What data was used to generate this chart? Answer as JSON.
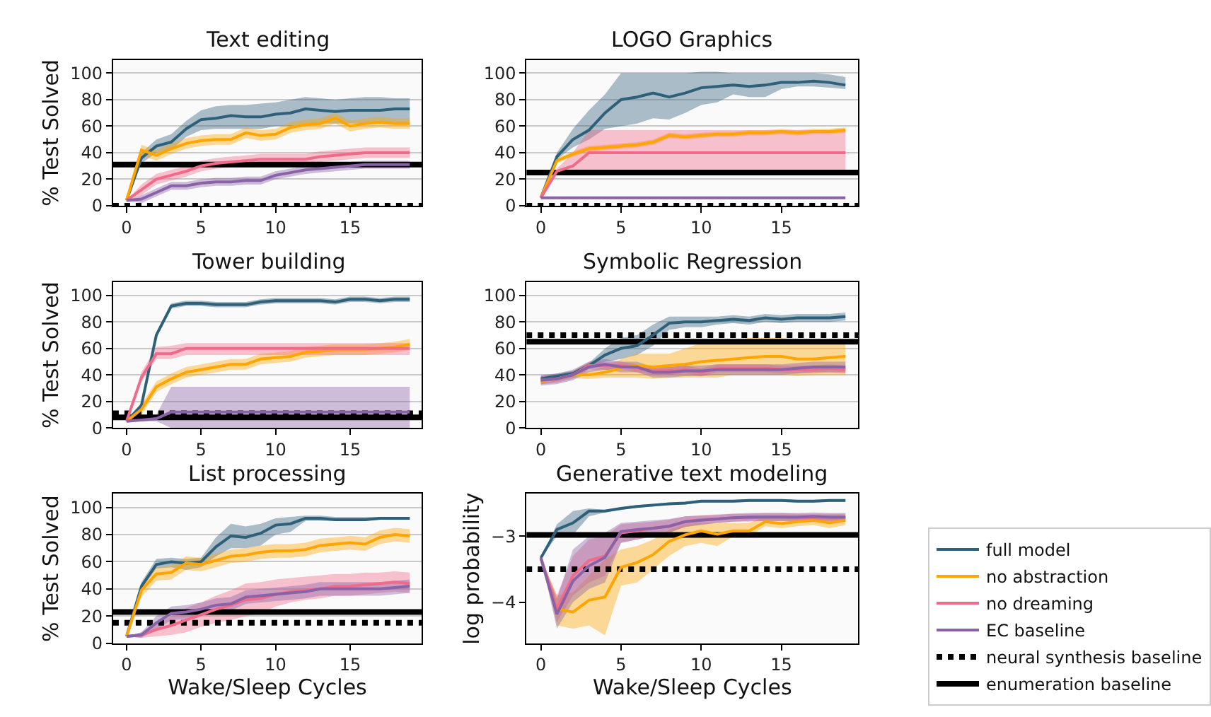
{
  "chart_data": [
    {
      "type": "line",
      "title": "Text editing",
      "ylabel": "% Test Solved",
      "x": [
        0,
        1,
        2,
        3,
        4,
        5,
        6,
        7,
        8,
        9,
        10,
        11,
        12,
        13,
        14,
        15,
        16,
        17,
        18,
        19
      ],
      "xlim": [
        -0.9,
        19.8
      ],
      "xticks": [
        0,
        5,
        10,
        15
      ],
      "ylim": [
        0,
        110
      ],
      "yticks": [
        0,
        20,
        40,
        60,
        80,
        100
      ],
      "grid": "y",
      "series": [
        {
          "color": "#2f607a",
          "values": [
            4,
            36,
            45,
            48,
            58,
            65,
            66,
            68,
            67,
            67,
            69,
            70,
            73,
            72,
            71,
            72,
            72,
            72,
            73,
            73
          ],
          "lower": [
            4,
            32,
            40,
            42,
            52,
            57,
            58,
            58,
            58,
            58,
            60,
            60,
            62,
            62,
            62,
            62,
            62,
            62,
            63,
            63
          ],
          "upper": [
            4,
            40,
            50,
            54,
            64,
            72,
            75,
            76,
            76,
            77,
            78,
            80,
            82,
            81,
            80,
            81,
            82,
            82,
            81,
            81
          ]
        },
        {
          "color": "#ffa500",
          "values": [
            4,
            42,
            38,
            43,
            47,
            49,
            50,
            50,
            55,
            53,
            54,
            59,
            61,
            62,
            66,
            60,
            62,
            63,
            62,
            62
          ],
          "lower": [
            4,
            38,
            34,
            39,
            43,
            45,
            46,
            46,
            51,
            49,
            50,
            55,
            57,
            58,
            62,
            56,
            58,
            59,
            58,
            58
          ],
          "upper": [
            4,
            46,
            42,
            47,
            51,
            53,
            54,
            54,
            59,
            57,
            58,
            63,
            65,
            66,
            70,
            64,
            66,
            67,
            66,
            66
          ]
        },
        {
          "color": "#f06a8a",
          "values": [
            4,
            12,
            20,
            23,
            26,
            30,
            32,
            33,
            34,
            35,
            35,
            35,
            35,
            37,
            38,
            39,
            40,
            40,
            40,
            40
          ],
          "lower": [
            4,
            8,
            16,
            19,
            22,
            26,
            28,
            29,
            30,
            31,
            31,
            31,
            31,
            33,
            34,
            35,
            36,
            36,
            36,
            36
          ],
          "upper": [
            4,
            16,
            24,
            27,
            30,
            34,
            36,
            37,
            38,
            39,
            39,
            39,
            39,
            41,
            42,
            43,
            44,
            44,
            44,
            44
          ]
        },
        {
          "color": "#8a62a8",
          "values": [
            4,
            5,
            10,
            15,
            15,
            17,
            18,
            18,
            19,
            19,
            23,
            25,
            27,
            28,
            29,
            30,
            31,
            31,
            31,
            31
          ],
          "lower": [
            4,
            2,
            7,
            12,
            12,
            14,
            15,
            15,
            16,
            16,
            20,
            22,
            24,
            25,
            26,
            27,
            28,
            28,
            28,
            28
          ],
          "upper": [
            4,
            8,
            13,
            18,
            18,
            20,
            21,
            21,
            22,
            22,
            26,
            28,
            30,
            31,
            32,
            33,
            34,
            34,
            34,
            34
          ]
        }
      ],
      "ref_lines": [
        {
          "axis": "y",
          "value": 0,
          "line_style": "dotted",
          "color": "#000000"
        },
        {
          "axis": "y",
          "value": 31,
          "line_style": "solid",
          "color": "#000000"
        }
      ]
    },
    {
      "type": "line",
      "title": "LOGO Graphics",
      "x": [
        0,
        1,
        2,
        3,
        4,
        5,
        6,
        7,
        8,
        9,
        10,
        11,
        12,
        13,
        14,
        15,
        16,
        17,
        18,
        19
      ],
      "xlim": [
        -0.9,
        19.8
      ],
      "xticks": [
        0,
        5,
        10,
        15
      ],
      "ylim": [
        0,
        110
      ],
      "yticks": [
        0,
        20,
        40,
        60,
        80,
        100
      ],
      "grid": "y",
      "series": [
        {
          "color": "#2f607a",
          "values": [
            6,
            37,
            50,
            57,
            70,
            80,
            82,
            85,
            82,
            85,
            89,
            90,
            91,
            90,
            91,
            93,
            93,
            94,
            93,
            91
          ],
          "lower": [
            6,
            35,
            44,
            50,
            58,
            60,
            62,
            66,
            65,
            70,
            76,
            78,
            84,
            82,
            82,
            88,
            90,
            90,
            89,
            88
          ],
          "upper": [
            6,
            40,
            58,
            72,
            84,
            100,
            100,
            100,
            100,
            100,
            101,
            101,
            100,
            100,
            100,
            100,
            100,
            100,
            99,
            97
          ]
        },
        {
          "color": "#ffa500",
          "values": [
            6,
            34,
            39,
            43,
            44,
            45,
            46,
            48,
            53,
            52,
            53,
            54,
            54,
            55,
            55,
            56,
            55,
            56,
            56,
            57
          ],
          "lower": [
            6,
            32,
            37,
            41,
            42,
            43,
            44,
            46,
            51,
            50,
            51,
            52,
            52,
            53,
            53,
            54,
            53,
            54,
            54,
            55
          ],
          "upper": [
            6,
            36,
            41,
            45,
            46,
            47,
            48,
            50,
            55,
            54,
            55,
            56,
            56,
            57,
            57,
            58,
            57,
            58,
            58,
            59
          ]
        },
        {
          "color": "#f06a8a",
          "values": [
            6,
            26,
            30,
            40,
            40,
            40,
            40,
            40,
            40,
            40,
            40,
            40,
            40,
            40,
            40,
            40,
            40,
            40,
            40,
            40
          ],
          "lower": [
            6,
            24,
            25,
            24,
            24,
            24,
            24,
            24,
            24,
            24,
            24,
            24,
            24,
            24,
            24,
            24,
            24,
            24,
            24,
            24
          ],
          "upper": [
            6,
            28,
            40,
            57,
            57,
            57,
            57,
            57,
            57,
            57,
            57,
            57,
            57,
            57,
            57,
            57,
            57,
            57,
            57,
            57
          ]
        },
        {
          "color": "#8a62a8",
          "values": [
            6,
            6,
            6,
            6,
            6,
            6,
            6,
            6,
            6,
            6,
            6,
            6,
            6,
            6,
            6,
            6,
            6,
            6,
            6,
            6
          ]
        }
      ],
      "ref_lines": [
        {
          "axis": "y",
          "value": 0,
          "line_style": "dotted",
          "color": "#000000"
        },
        {
          "axis": "y",
          "value": 25,
          "line_style": "solid",
          "color": "#000000"
        }
      ]
    },
    {
      "type": "line",
      "title": "Tower building",
      "ylabel": "% Test Solved",
      "x": [
        0,
        1,
        2,
        3,
        4,
        5,
        6,
        7,
        8,
        9,
        10,
        11,
        12,
        13,
        14,
        15,
        16,
        17,
        18,
        19
      ],
      "xlim": [
        -0.9,
        19.8
      ],
      "xticks": [
        0,
        5,
        10,
        15
      ],
      "ylim": [
        0,
        110
      ],
      "yticks": [
        0,
        20,
        40,
        60,
        80,
        100
      ],
      "grid": "y",
      "series": [
        {
          "color": "#2f607a",
          "values": [
            5,
            17,
            70,
            92,
            94,
            94,
            93,
            93,
            93,
            95,
            96,
            96,
            96,
            96,
            95,
            97,
            97,
            96,
            97,
            97
          ],
          "lower": [
            5,
            15,
            68,
            90,
            92,
            92,
            91,
            91,
            91,
            93,
            94,
            94,
            94,
            94,
            93,
            95,
            95,
            94,
            95,
            95
          ],
          "upper": [
            5,
            19,
            72,
            94,
            96,
            96,
            95,
            95,
            95,
            97,
            98,
            98,
            98,
            98,
            97,
            99,
            99,
            98,
            99,
            99
          ]
        },
        {
          "color": "#ffa500",
          "values": [
            5,
            14,
            31,
            37,
            42,
            44,
            46,
            48,
            48,
            52,
            53,
            54,
            57,
            58,
            59,
            59,
            59,
            60,
            61,
            63
          ],
          "lower": [
            5,
            10,
            27,
            33,
            38,
            40,
            42,
            44,
            44,
            48,
            49,
            50,
            53,
            54,
            55,
            55,
            55,
            56,
            57,
            59
          ],
          "upper": [
            5,
            18,
            35,
            41,
            46,
            48,
            50,
            52,
            52,
            56,
            57,
            58,
            61,
            62,
            63,
            63,
            63,
            64,
            65,
            67
          ]
        },
        {
          "color": "#f06a8a",
          "values": [
            5,
            38,
            56,
            56,
            60,
            60,
            60,
            60,
            60,
            60,
            60,
            60,
            60,
            60,
            60,
            60,
            60,
            60,
            60,
            60
          ],
          "lower": [
            5,
            35,
            52,
            52,
            55,
            55,
            55,
            55,
            55,
            55,
            55,
            55,
            55,
            55,
            55,
            55,
            55,
            55,
            55,
            55
          ],
          "upper": [
            5,
            42,
            61,
            62,
            64,
            64,
            64,
            64,
            64,
            64,
            64,
            64,
            64,
            64,
            64,
            64,
            64,
            64,
            64,
            64
          ]
        },
        {
          "color": "#8a62a8",
          "values": [
            5,
            6,
            7,
            12,
            12,
            12,
            12,
            12,
            12,
            12,
            12,
            12,
            12,
            12,
            12,
            12,
            12,
            12,
            12,
            12
          ],
          "lower": [
            5,
            5,
            5,
            0,
            0,
            0,
            0,
            0,
            0,
            0,
            0,
            0,
            0,
            0,
            0,
            0,
            0,
            0,
            0,
            0
          ],
          "upper": [
            5,
            7,
            10,
            31,
            31,
            31,
            31,
            31,
            31,
            31,
            31,
            31,
            31,
            31,
            31,
            31,
            31,
            31,
            31,
            31
          ]
        }
      ],
      "ref_lines": [
        {
          "axis": "y",
          "value": 11,
          "line_style": "dotted",
          "color": "#000000"
        },
        {
          "axis": "y",
          "value": 8,
          "line_style": "solid",
          "color": "#000000"
        }
      ]
    },
    {
      "type": "line",
      "title": "Symbolic Regression",
      "x": [
        0,
        1,
        2,
        3,
        4,
        5,
        6,
        7,
        8,
        9,
        10,
        11,
        12,
        13,
        14,
        15,
        16,
        17,
        18,
        19
      ],
      "xlim": [
        -0.9,
        19.8
      ],
      "xticks": [
        0,
        5,
        10,
        15
      ],
      "ylim": [
        0,
        110
      ],
      "yticks": [
        0,
        20,
        40,
        60,
        80,
        100
      ],
      "grid": "y",
      "series": [
        {
          "color": "#2f607a",
          "values": [
            37,
            39,
            41,
            47,
            55,
            60,
            62,
            70,
            79,
            80,
            80,
            81,
            82,
            81,
            83,
            82,
            83,
            83,
            83,
            84
          ],
          "lower": [
            35,
            37,
            39,
            45,
            50,
            52,
            55,
            62,
            74,
            76,
            76,
            78,
            79,
            78,
            80,
            79,
            80,
            80,
            80,
            81
          ],
          "upper": [
            39,
            41,
            43,
            49,
            60,
            68,
            70,
            78,
            84,
            84,
            84,
            84,
            85,
            84,
            86,
            85,
            86,
            86,
            86,
            87
          ]
        },
        {
          "color": "#ffa500",
          "values": [
            35,
            37,
            40,
            40,
            42,
            45,
            47,
            46,
            47,
            48,
            50,
            51,
            52,
            53,
            54,
            54,
            52,
            52,
            53,
            54
          ],
          "lower": [
            33,
            35,
            38,
            37,
            38,
            38,
            38,
            37,
            38,
            38,
            38,
            38,
            40,
            40,
            40,
            40,
            39,
            40,
            40,
            40
          ],
          "upper": [
            37,
            39,
            42,
            43,
            46,
            52,
            56,
            56,
            56,
            60,
            64,
            66,
            66,
            68,
            68,
            68,
            66,
            66,
            66,
            66
          ]
        },
        {
          "color": "#f06a8a",
          "values": [
            36,
            37,
            40,
            47,
            47,
            47,
            45,
            43,
            43,
            44,
            42,
            45,
            45,
            45,
            45,
            44,
            44,
            44,
            45,
            44
          ],
          "lower": [
            33,
            34,
            37,
            44,
            44,
            44,
            42,
            40,
            40,
            41,
            39,
            42,
            42,
            42,
            42,
            41,
            41,
            41,
            42,
            41
          ],
          "upper": [
            39,
            40,
            43,
            50,
            50,
            50,
            48,
            46,
            46,
            47,
            45,
            48,
            48,
            48,
            48,
            47,
            47,
            47,
            48,
            47
          ]
        },
        {
          "color": "#8a62a8",
          "values": [
            36,
            37,
            40,
            46,
            48,
            46,
            46,
            42,
            42,
            43,
            43,
            44,
            44,
            44,
            44,
            44,
            45,
            46,
            46,
            46
          ],
          "lower": [
            32,
            33,
            36,
            42,
            44,
            42,
            42,
            38,
            38,
            39,
            39,
            40,
            40,
            40,
            40,
            40,
            41,
            42,
            42,
            42
          ],
          "upper": [
            40,
            41,
            44,
            50,
            52,
            50,
            50,
            46,
            46,
            47,
            47,
            48,
            48,
            48,
            48,
            48,
            49,
            50,
            50,
            50
          ]
        }
      ],
      "ref_lines": [
        {
          "axis": "y",
          "value": 70,
          "line_style": "dotted",
          "color": "#000000"
        },
        {
          "axis": "y",
          "value": 65,
          "line_style": "solid",
          "color": "#000000"
        }
      ]
    },
    {
      "type": "line",
      "title": "List processing",
      "xlabel": "Wake/Sleep Cycles",
      "ylabel": "% Test Solved",
      "x": [
        0,
        1,
        2,
        3,
        4,
        5,
        6,
        7,
        8,
        9,
        10,
        11,
        12,
        13,
        14,
        15,
        16,
        17,
        18,
        19
      ],
      "xlim": [
        -0.9,
        19.8
      ],
      "xticks": [
        0,
        5,
        10,
        15
      ],
      "ylim": [
        0,
        110
      ],
      "yticks": [
        0,
        20,
        40,
        60,
        80,
        100
      ],
      "grid": "y",
      "series": [
        {
          "color": "#2f607a",
          "values": [
            5,
            42,
            58,
            60,
            59,
            60,
            71,
            79,
            78,
            81,
            87,
            88,
            92,
            92,
            91,
            91,
            91,
            92,
            92,
            92
          ],
          "lower": [
            5,
            40,
            55,
            56,
            54,
            56,
            64,
            70,
            70,
            72,
            80,
            82,
            90,
            90,
            90,
            90,
            90,
            91,
            91,
            91
          ],
          "upper": [
            5,
            45,
            62,
            63,
            62,
            63,
            78,
            88,
            86,
            88,
            92,
            93,
            94,
            94,
            93,
            93,
            93,
            93,
            93,
            93
          ]
        },
        {
          "color": "#ffa500",
          "values": [
            5,
            39,
            51,
            52,
            59,
            58,
            61,
            64,
            65,
            67,
            68,
            68,
            69,
            72,
            73,
            74,
            73,
            78,
            80,
            79
          ],
          "lower": [
            5,
            34,
            46,
            47,
            54,
            53,
            56,
            59,
            60,
            62,
            63,
            63,
            64,
            67,
            68,
            69,
            68,
            73,
            75,
            74
          ],
          "upper": [
            5,
            44,
            56,
            57,
            64,
            63,
            66,
            69,
            70,
            72,
            73,
            73,
            74,
            77,
            78,
            79,
            78,
            83,
            85,
            84
          ]
        },
        {
          "color": "#f06a8a",
          "values": [
            5,
            6,
            10,
            13,
            17,
            21,
            25,
            28,
            32,
            33,
            36,
            38,
            39,
            40,
            42,
            42,
            43,
            44,
            45,
            44
          ],
          "lower": [
            5,
            4,
            5,
            6,
            8,
            12,
            15,
            17,
            20,
            22,
            27,
            30,
            32,
            33,
            35,
            35,
            36,
            37,
            38,
            37
          ],
          "upper": [
            5,
            8,
            15,
            20,
            26,
            30,
            35,
            39,
            44,
            45,
            47,
            48,
            49,
            50,
            51,
            51,
            52,
            52,
            53,
            52
          ]
        },
        {
          "color": "#8a62a8",
          "values": [
            5,
            6,
            15,
            22,
            23,
            25,
            28,
            29,
            34,
            35,
            36,
            37,
            38,
            40,
            40,
            40,
            40,
            40,
            41,
            42
          ],
          "lower": [
            5,
            4,
            10,
            17,
            18,
            20,
            23,
            24,
            29,
            30,
            31,
            32,
            33,
            35,
            35,
            35,
            35,
            35,
            36,
            37
          ],
          "upper": [
            5,
            8,
            20,
            27,
            28,
            30,
            33,
            34,
            39,
            40,
            41,
            42,
            43,
            45,
            45,
            45,
            45,
            45,
            46,
            47
          ]
        }
      ],
      "ref_lines": [
        {
          "axis": "y",
          "value": 15,
          "line_style": "dotted",
          "color": "#000000"
        },
        {
          "axis": "y",
          "value": 23,
          "line_style": "solid",
          "color": "#000000"
        }
      ]
    },
    {
      "type": "line",
      "title": "Generative text modeling",
      "xlabel": "Wake/Sleep Cycles",
      "ylabel": "log probability",
      "x": [
        0,
        1,
        2,
        3,
        4,
        5,
        6,
        7,
        8,
        9,
        10,
        11,
        12,
        13,
        14,
        15,
        16,
        17,
        18,
        19
      ],
      "xlim": [
        -0.9,
        19.8
      ],
      "xticks": [
        0,
        5,
        10,
        15
      ],
      "ylim": [
        -4.62,
        -2.36
      ],
      "yticks": [
        {
          "value": -4,
          "label": "−4"
        },
        {
          "value": -3,
          "label": "−3"
        }
      ],
      "legend": "right",
      "series": [
        {
          "name": "full model",
          "color": "#2f607a",
          "values": [
            -3.33,
            -2.9,
            -2.8,
            -2.62,
            -2.62,
            -2.58,
            -2.55,
            -2.53,
            -2.51,
            -2.5,
            -2.47,
            -2.47,
            -2.47,
            -2.46,
            -2.46,
            -2.46,
            -2.47,
            -2.47,
            -2.46,
            -2.46
          ],
          "lower": [
            -3.33,
            -3.0,
            -2.98,
            -2.7,
            -2.64,
            -2.6,
            -2.57,
            -2.55,
            -2.53,
            -2.52,
            -2.49,
            -2.49,
            -2.49,
            -2.48,
            -2.48,
            -2.48,
            -2.49,
            -2.49,
            -2.48,
            -2.48
          ],
          "upper": [
            -3.33,
            -2.82,
            -2.62,
            -2.58,
            -2.6,
            -2.56,
            -2.53,
            -2.51,
            -2.49,
            -2.48,
            -2.45,
            -2.45,
            -2.45,
            -2.44,
            -2.44,
            -2.44,
            -2.45,
            -2.45,
            -2.44,
            -2.44
          ]
        },
        {
          "name": "no abstraction",
          "color": "#ffa500",
          "values": [
            -3.33,
            -4.1,
            -4.15,
            -3.97,
            -3.92,
            -3.47,
            -3.4,
            -3.28,
            -3.08,
            -2.98,
            -2.92,
            -2.97,
            -2.92,
            -2.92,
            -2.78,
            -2.81,
            -2.78,
            -2.76,
            -2.8,
            -2.76
          ],
          "lower": [
            -3.33,
            -4.35,
            -4.4,
            -4.35,
            -4.5,
            -3.75,
            -3.7,
            -3.5,
            -3.3,
            -3.15,
            -3.1,
            -3.15,
            -3.0,
            -3.0,
            -2.85,
            -2.88,
            -2.85,
            -2.83,
            -2.88,
            -2.83
          ],
          "upper": [
            -3.33,
            -3.9,
            -3.85,
            -3.6,
            -3.35,
            -3.2,
            -3.15,
            -3.05,
            -2.9,
            -2.82,
            -2.8,
            -2.8,
            -2.8,
            -2.8,
            -2.7,
            -2.72,
            -2.72,
            -2.7,
            -2.72,
            -2.7
          ]
        },
        {
          "name": "no dreaming",
          "color": "#f06a8a",
          "values": [
            -3.33,
            -4.1,
            -3.6,
            -3.37,
            -3.3,
            -2.95,
            -2.92,
            -2.88,
            -2.85,
            -2.78,
            -2.75,
            -2.74,
            -2.72,
            -2.72,
            -2.71,
            -2.71,
            -2.72,
            -2.72,
            -2.72,
            -2.72
          ],
          "lower": [
            -3.33,
            -4.3,
            -3.9,
            -3.7,
            -3.6,
            -3.1,
            -3.05,
            -3.0,
            -2.95,
            -2.86,
            -2.82,
            -2.8,
            -2.78,
            -2.78,
            -2.77,
            -2.77,
            -2.78,
            -2.78,
            -2.78,
            -2.78
          ],
          "upper": [
            -3.33,
            -3.9,
            -3.3,
            -3.05,
            -3.0,
            -2.82,
            -2.8,
            -2.78,
            -2.75,
            -2.7,
            -2.68,
            -2.67,
            -2.66,
            -2.66,
            -2.65,
            -2.65,
            -2.66,
            -2.66,
            -2.66,
            -2.66
          ]
        },
        {
          "name": "EC baseline",
          "color": "#8a62a8",
          "values": [
            -3.33,
            -4.18,
            -3.68,
            -3.45,
            -3.32,
            -2.93,
            -2.9,
            -2.88,
            -2.85,
            -2.78,
            -2.76,
            -2.74,
            -2.72,
            -2.71,
            -2.71,
            -2.71,
            -2.71,
            -2.7,
            -2.71,
            -2.71
          ],
          "lower": [
            -3.33,
            -4.4,
            -4.0,
            -3.8,
            -3.7,
            -3.1,
            -3.05,
            -3.0,
            -2.95,
            -2.86,
            -2.83,
            -2.8,
            -2.78,
            -2.77,
            -2.77,
            -2.77,
            -2.77,
            -2.76,
            -2.77,
            -2.77
          ],
          "upper": [
            -3.33,
            -3.95,
            -3.2,
            -3.0,
            -2.95,
            -2.8,
            -2.78,
            -2.76,
            -2.74,
            -2.7,
            -2.69,
            -2.68,
            -2.66,
            -2.65,
            -2.65,
            -2.65,
            -2.65,
            -2.64,
            -2.65,
            -2.65
          ]
        }
      ],
      "ref_lines": [
        {
          "axis": "y",
          "value": -3.5,
          "line_style": "dotted",
          "color": "#000000",
          "label": "neural synthesis baseline"
        },
        {
          "axis": "y",
          "value": -2.98,
          "line_style": "solid",
          "color": "#000000",
          "label": "enumeration baseline"
        }
      ]
    }
  ]
}
